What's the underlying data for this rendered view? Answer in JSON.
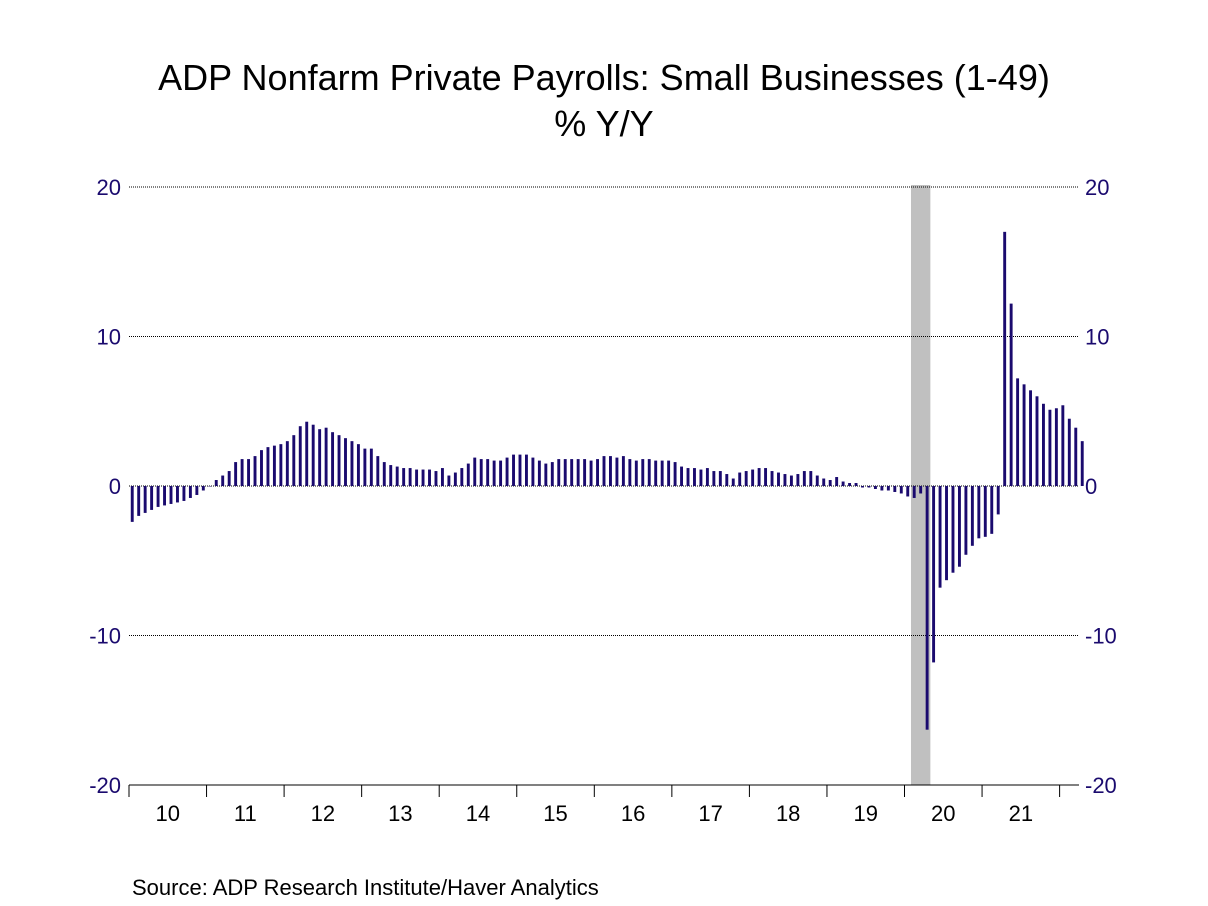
{
  "chart_data": {
    "type": "bar",
    "title": "ADP Nonfarm Private Payrolls: Small Businesses (1-49)",
    "subtitle": "% Y/Y",
    "source": "Source:  ADP Research Institute/Haver Analytics",
    "ylim": [
      -20,
      20
    ],
    "yticks": [
      20,
      10,
      0,
      -10,
      -20
    ],
    "xlim": [
      2010.0,
      2022.25
    ],
    "years": [
      2010,
      2011,
      2012,
      2013,
      2014,
      2015,
      2016,
      2017,
      2018,
      2019,
      2020,
      2021
    ],
    "year_labels": [
      "10",
      "11",
      "12",
      "13",
      "14",
      "15",
      "16",
      "17",
      "18",
      "19",
      "20",
      "21"
    ],
    "grid": "horizontal dotted at each y tick",
    "recession_shading": {
      "start": "2020-02",
      "end": "2020-04",
      "color": "#c0c0c0"
    },
    "colors": {
      "bars": "#1a0a6e",
      "axis_text": "#1a0a6e",
      "axis_line": "#000000",
      "grid": "#000000",
      "recession": "#c0c0c0"
    },
    "series": [
      {
        "start": "2010-01",
        "frequency": "monthly",
        "values": [
          -2.4,
          -2.0,
          -1.8,
          -1.6,
          -1.4,
          -1.3,
          -1.2,
          -1.1,
          -1.0,
          -0.8,
          -0.6,
          -0.3,
          0.0,
          0.4,
          0.7,
          1.0,
          1.6,
          1.8,
          1.8,
          2.0,
          2.4,
          2.6,
          2.7,
          2.8,
          3.0,
          3.4,
          4.0,
          4.3,
          4.1,
          3.8,
          3.9,
          3.6,
          3.4,
          3.2,
          3.0,
          2.8,
          2.5,
          2.5,
          2.0,
          1.6,
          1.4,
          1.3,
          1.2,
          1.2,
          1.1,
          1.1,
          1.1,
          1.0,
          1.2,
          0.7,
          0.9,
          1.2,
          1.5,
          1.9,
          1.8,
          1.8,
          1.7,
          1.7,
          1.9,
          2.1,
          2.1,
          2.1,
          1.9,
          1.7,
          1.5,
          1.6,
          1.8,
          1.8,
          1.8,
          1.8,
          1.8,
          1.7,
          1.8,
          2.0,
          2.0,
          1.9,
          2.0,
          1.8,
          1.7,
          1.8,
          1.8,
          1.7,
          1.7,
          1.7,
          1.6,
          1.3,
          1.2,
          1.2,
          1.1,
          1.2,
          1.0,
          1.0,
          0.8,
          0.5,
          0.9,
          1.0,
          1.1,
          1.2,
          1.2,
          1.0,
          0.9,
          0.8,
          0.7,
          0.8,
          1.0,
          1.0,
          0.7,
          0.5,
          0.4,
          0.6,
          0.3,
          0.2,
          0.2,
          -0.1,
          -0.1,
          -0.2,
          -0.3,
          -0.3,
          -0.4,
          -0.5,
          -0.7,
          -0.8,
          -0.5,
          -16.3,
          -11.8,
          -6.8,
          -6.3,
          -5.8,
          -5.4,
          -4.6,
          -4.0,
          -3.5,
          -3.4,
          -3.2,
          -1.9,
          17.0,
          12.2,
          7.2,
          6.8,
          6.4,
          6.0,
          5.5,
          5.1,
          5.2,
          5.4,
          4.5,
          3.9,
          3.0
        ]
      }
    ]
  }
}
